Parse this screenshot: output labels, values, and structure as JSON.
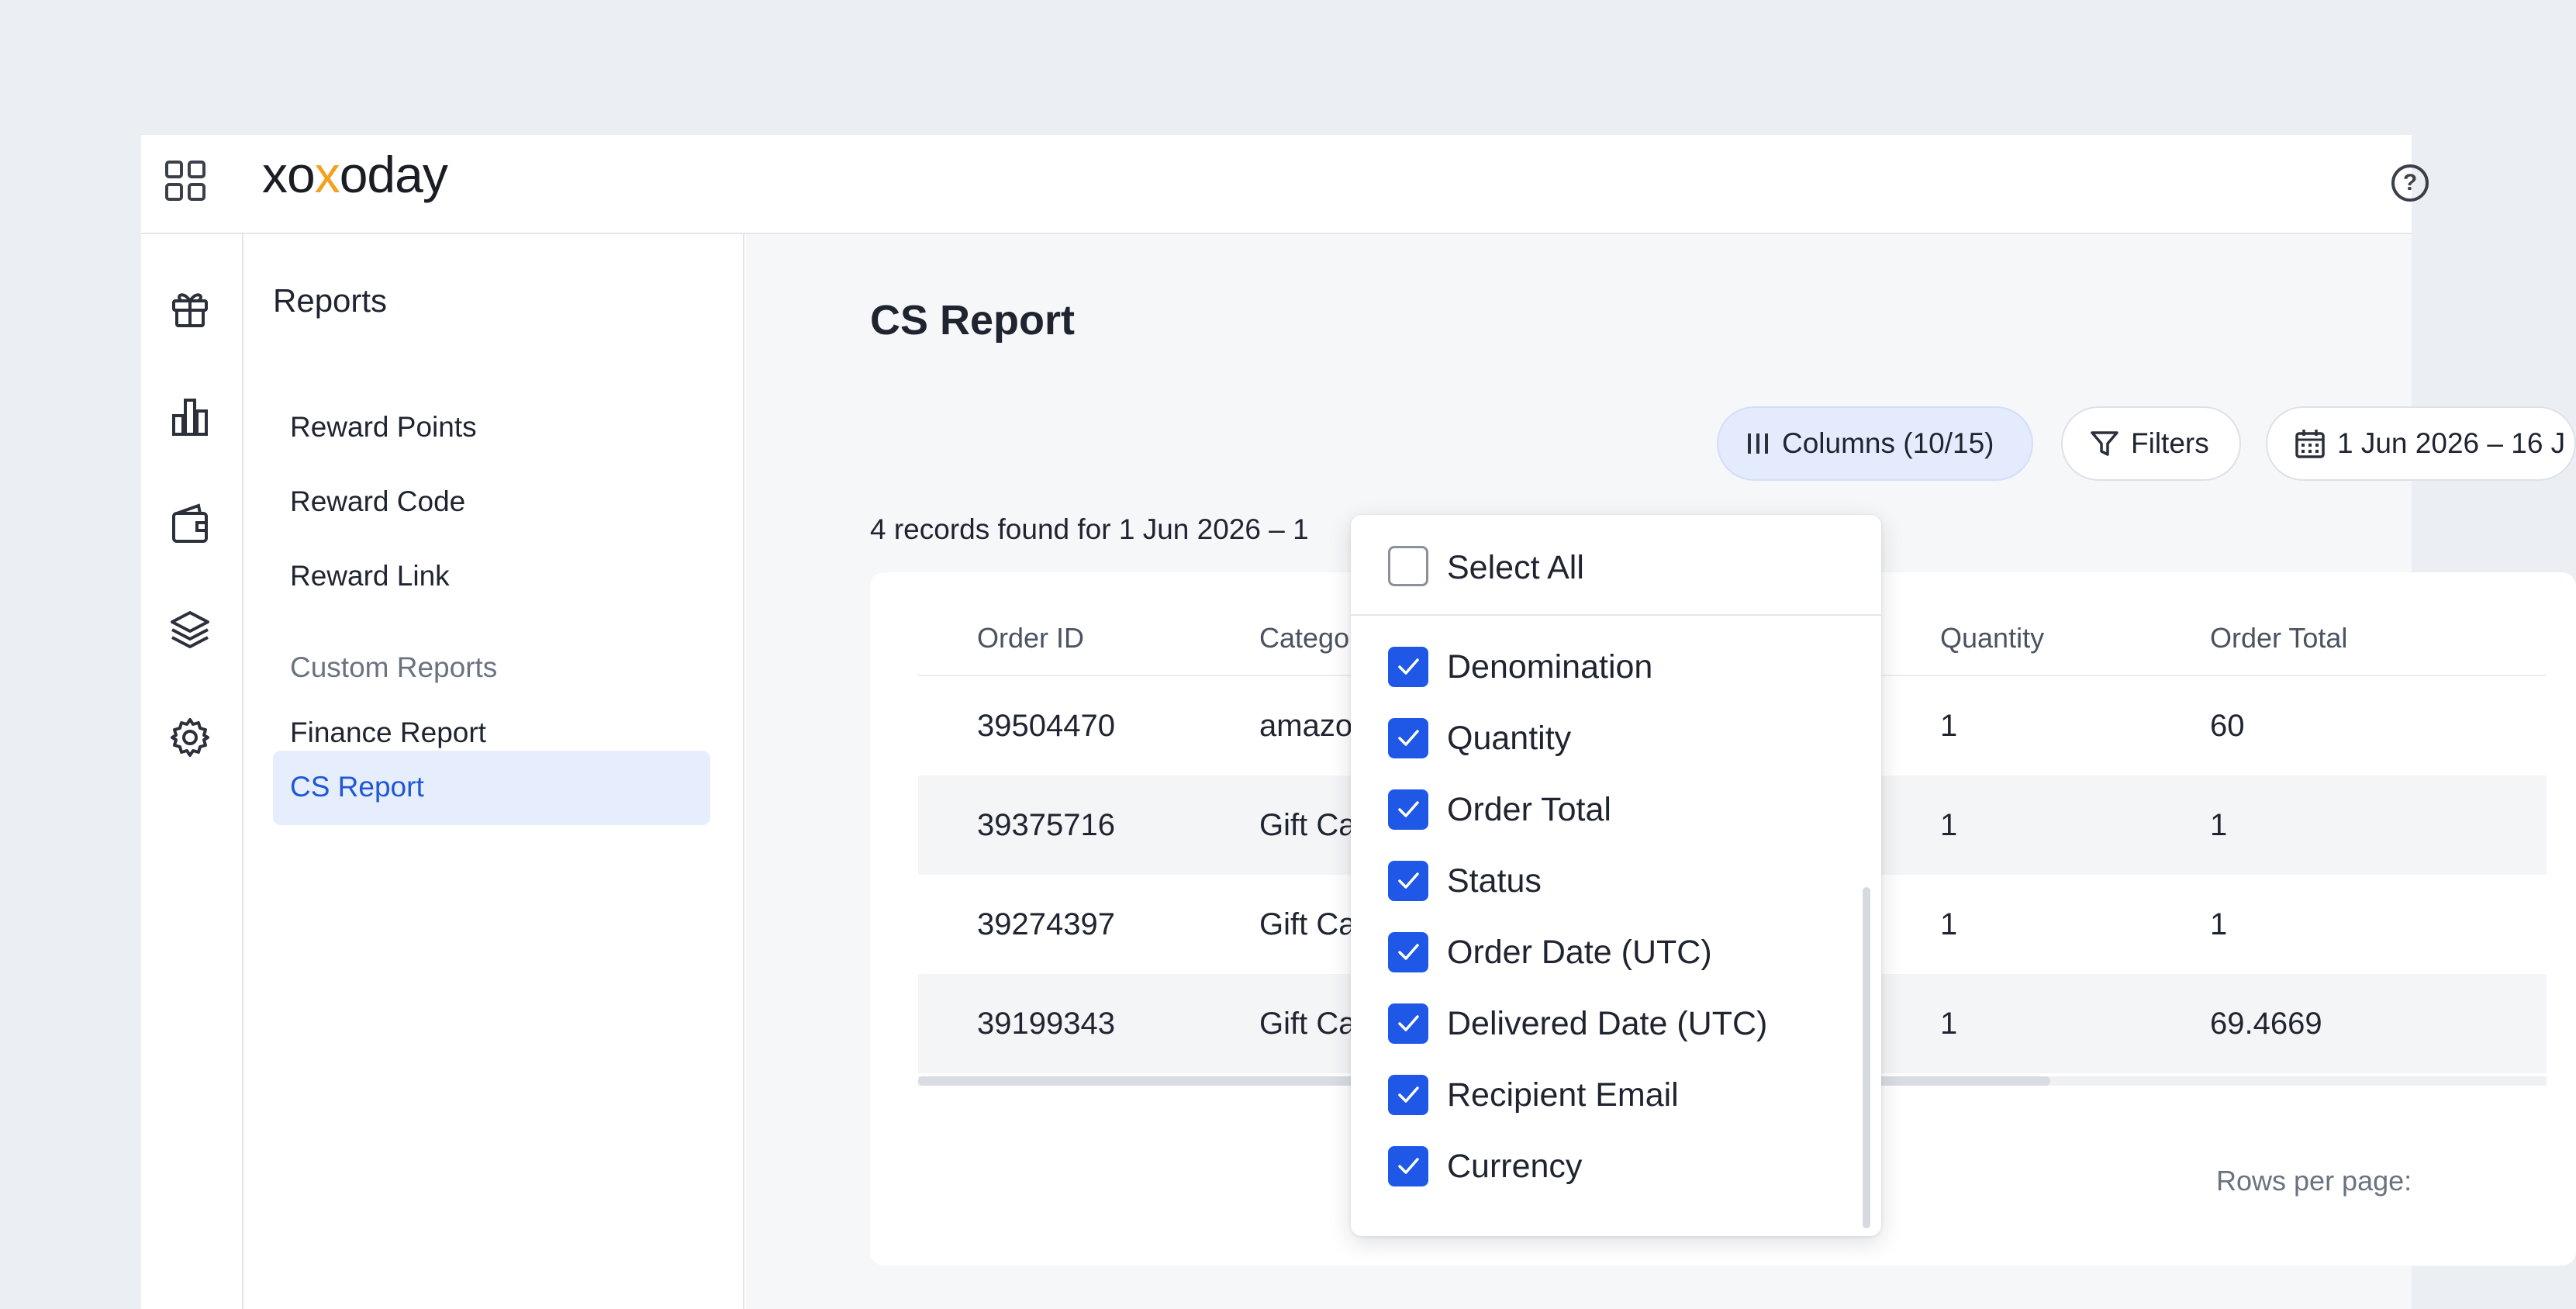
{
  "app": {
    "logo": "xoxoday"
  },
  "subnav": {
    "title": "Reports",
    "items": [
      {
        "label": "Reward Points"
      },
      {
        "label": "Reward Code"
      },
      {
        "label": "Reward Link"
      }
    ],
    "group_label": "Custom Reports",
    "custom_items": [
      {
        "label": "Finance Report"
      },
      {
        "label": "CS Report",
        "active": true
      }
    ]
  },
  "rail": {
    "icons": [
      "gift-icon",
      "bar-chart-icon",
      "wallet-icon",
      "layers-icon",
      "gear-icon"
    ]
  },
  "main": {
    "title": "CS Report",
    "columns_button": "Columns (10/15)",
    "filters_button": "Filters",
    "date_range": "1 Jun 2026 – 16 J",
    "records_text": "4 records found for 1 Jun 2026 – 1",
    "rows_per_page": "Rows per page:"
  },
  "table": {
    "headers": [
      "Order ID",
      "Catego",
      "Quantity",
      "Order Total"
    ],
    "rows": [
      [
        "39504470",
        "amazo",
        "1",
        "60"
      ],
      [
        "39375716",
        "Gift Ca",
        "1",
        "1"
      ],
      [
        "39274397",
        "Gift Ca",
        "1",
        "1"
      ],
      [
        "39199343",
        "Gift Ca",
        "1",
        "69.4669"
      ]
    ]
  },
  "columns_dropdown": {
    "select_all": "Select All",
    "select_all_checked": false,
    "options": [
      {
        "label": "Denomination",
        "checked": true
      },
      {
        "label": "Quantity",
        "checked": true
      },
      {
        "label": "Order Total",
        "checked": true
      },
      {
        "label": "Status",
        "checked": true
      },
      {
        "label": "Order Date (UTC)",
        "checked": true
      },
      {
        "label": "Delivered Date (UTC)",
        "checked": true
      },
      {
        "label": "Recipient Email",
        "checked": true
      },
      {
        "label": "Currency",
        "checked": true
      }
    ]
  },
  "colors": {
    "accent": "#1f57e6",
    "active_nav_bg": "#e6edfd",
    "logo_accent": "#f3a11f"
  }
}
